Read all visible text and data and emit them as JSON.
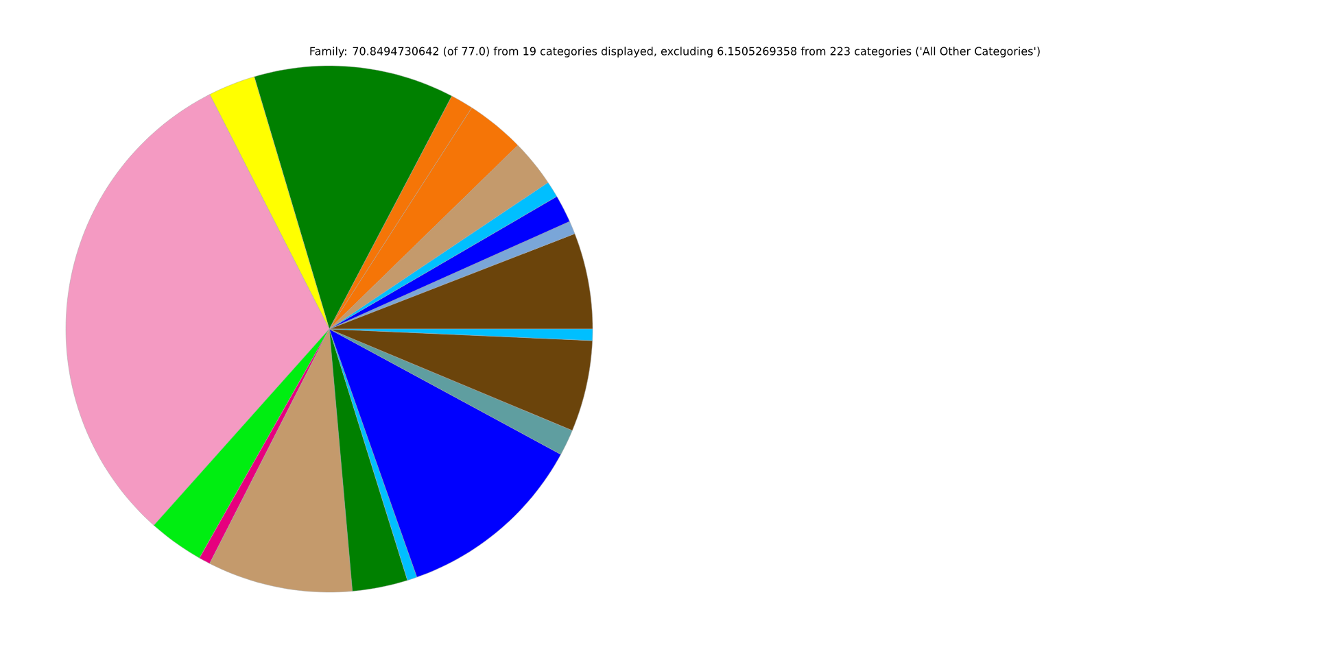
{
  "chart_data": {
    "type": "pie",
    "title": "Family: 70.8494730642 (of 77.0) from 19 categories displayed, excluding 6.1505269358 from 223 categories ('All Other Categories')",
    "categories": [
      null,
      null,
      null,
      null,
      null,
      null,
      null,
      null,
      null,
      null,
      null,
      null,
      null,
      null,
      null,
      null,
      null,
      null,
      null
    ],
    "values": [
      5.9,
      0.8,
      1.7,
      1.0,
      2.9,
      3.6,
      1.4,
      12.3,
      2.9,
      30.9,
      3.4,
      0.7,
      8.9,
      3.4,
      0.6,
      11.7,
      1.6,
      5.6,
      0.7
    ],
    "colors": [
      "#6b440b",
      "#7aa6d8",
      "#0000ff",
      "#00bfff",
      "#c49a6c",
      "#f57507",
      "#f57507",
      "#008000",
      "#ffff00",
      "#f49ac2",
      "#00ee11",
      "#e6007e",
      "#c49a6c",
      "#008000",
      "#00bfff",
      "#0000ff",
      "#5f9ea0",
      "#6b440b",
      "#00bfff"
    ]
  }
}
